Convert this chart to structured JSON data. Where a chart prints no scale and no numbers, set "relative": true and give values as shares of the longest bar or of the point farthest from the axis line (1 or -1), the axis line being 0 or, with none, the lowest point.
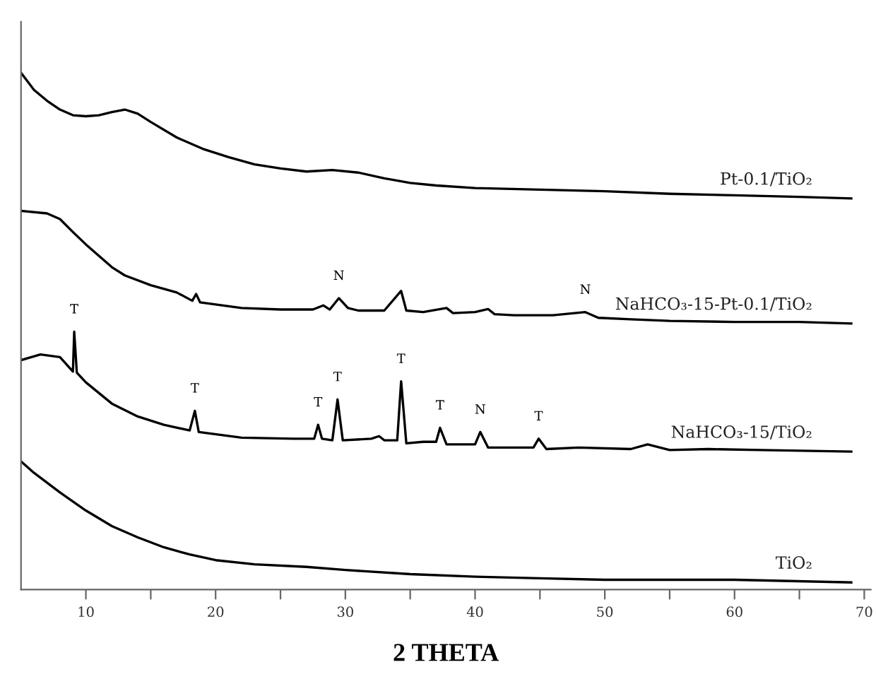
{
  "chart_data": {
    "type": "line",
    "relative": true,
    "xlabel": "2 THETA",
    "xlim": [
      5,
      70.5
    ],
    "xticks": [
      10,
      {
        "value": 15,
        "label": null
      },
      20,
      {
        "value": 25,
        "label": null
      },
      30,
      {
        "value": 35,
        "label": null
      },
      40,
      {
        "value": 45,
        "label": null
      },
      50,
      {
        "value": 55,
        "label": null
      },
      60,
      {
        "value": 65,
        "label": null
      },
      70
    ],
    "grid": false,
    "marker": "none",
    "line_style": "solid",
    "series": [
      {
        "name": "Pt-0.1/TiO₂",
        "color": "#000000",
        "x": [
          5,
          6,
          7,
          8,
          9,
          10,
          11,
          12,
          13,
          14,
          15,
          17,
          19,
          21,
          23,
          25,
          27,
          29,
          31,
          33,
          35,
          37,
          40,
          45,
          50,
          55,
          60,
          65,
          69
        ],
        "values": [
          1.0,
          0.967,
          0.946,
          0.929,
          0.918,
          0.916,
          0.918,
          0.924,
          0.929,
          0.921,
          0.905,
          0.875,
          0.853,
          0.837,
          0.823,
          0.815,
          0.809,
          0.812,
          0.807,
          0.796,
          0.787,
          0.782,
          0.777,
          0.774,
          0.771,
          0.766,
          0.763,
          0.76,
          0.757
        ]
      },
      {
        "name": "NaHCO₃-15-Pt-0.1/TiO₂",
        "color": "#000000",
        "x": [
          5,
          7,
          8,
          9,
          10,
          11,
          12,
          13,
          15,
          17,
          18.2,
          18.5,
          18.8,
          22,
          25,
          27.5,
          28.3,
          28.8,
          29.5,
          30.2,
          31,
          33,
          34.3,
          34.7,
          36,
          37.8,
          38.3,
          40,
          41,
          41.5,
          43,
          46,
          48.5,
          49.5,
          52,
          55,
          60,
          65,
          69
        ],
        "values": [
          0.733,
          0.728,
          0.717,
          0.692,
          0.668,
          0.646,
          0.624,
          0.608,
          0.589,
          0.575,
          0.559,
          0.572,
          0.556,
          0.545,
          0.542,
          0.542,
          0.55,
          0.542,
          0.564,
          0.545,
          0.54,
          0.54,
          0.578,
          0.54,
          0.537,
          0.545,
          0.535,
          0.537,
          0.543,
          0.533,
          0.531,
          0.531,
          0.537,
          0.526,
          0.523,
          0.52,
          0.518,
          0.518,
          0.515
        ]
      },
      {
        "name": "NaHCO₃-15/TiO₂",
        "color": "#000000",
        "x": [
          5,
          6.5,
          8,
          9,
          9.1,
          9.3,
          10,
          12,
          14,
          16,
          18,
          18.4,
          18.7,
          22,
          26,
          27.6,
          27.9,
          28.2,
          29.0,
          29.4,
          29.8,
          32,
          32.6,
          33,
          34.0,
          34.3,
          34.7,
          36,
          37.0,
          37.3,
          37.8,
          40.0,
          40.4,
          41,
          44.5,
          44.9,
          45.5,
          48,
          52,
          53.3,
          55,
          58,
          62,
          69
        ],
        "values": [
          0.444,
          0.455,
          0.45,
          0.422,
          0.499,
          0.42,
          0.401,
          0.36,
          0.335,
          0.319,
          0.308,
          0.346,
          0.305,
          0.294,
          0.292,
          0.292,
          0.319,
          0.292,
          0.289,
          0.368,
          0.289,
          0.292,
          0.297,
          0.289,
          0.289,
          0.403,
          0.283,
          0.286,
          0.286,
          0.313,
          0.281,
          0.281,
          0.305,
          0.275,
          0.275,
          0.292,
          0.272,
          0.275,
          0.272,
          0.281,
          0.27,
          0.272,
          0.27,
          0.267
        ]
      },
      {
        "name": "TiO₂",
        "color": "#000000",
        "x": [
          5,
          6,
          8,
          10,
          12,
          14,
          16,
          18,
          20,
          23,
          27,
          30,
          35,
          40,
          45,
          50,
          60,
          69
        ],
        "values": [
          0.248,
          0.226,
          0.188,
          0.153,
          0.123,
          0.101,
          0.082,
          0.068,
          0.057,
          0.049,
          0.044,
          0.038,
          0.03,
          0.025,
          0.022,
          0.019,
          0.019,
          0.014
        ]
      }
    ],
    "annotations": [
      {
        "text": "N",
        "x": 29.5,
        "y": 0.564
      },
      {
        "text": "N",
        "x": 48.5,
        "y": 0.537
      },
      {
        "text": "T",
        "x": 9.1,
        "y": 0.499
      },
      {
        "text": "T",
        "x": 18.4,
        "y": 0.346
      },
      {
        "text": "T",
        "x": 27.9,
        "y": 0.319
      },
      {
        "text": "T",
        "x": 29.4,
        "y": 0.368
      },
      {
        "text": "T",
        "x": 34.3,
        "y": 0.403
      },
      {
        "text": "T",
        "x": 37.3,
        "y": 0.313
      },
      {
        "text": "N",
        "x": 40.4,
        "y": 0.305
      },
      {
        "text": "T",
        "x": 44.9,
        "y": 0.292
      }
    ]
  }
}
